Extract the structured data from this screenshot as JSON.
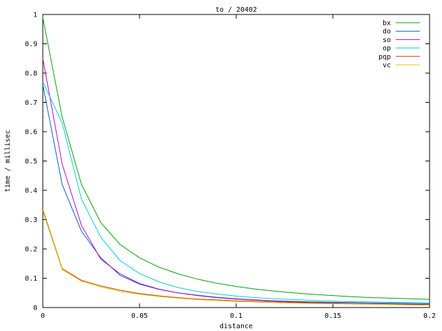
{
  "chart_data": {
    "type": "line",
    "title": "to / 20402",
    "xlabel": "distance",
    "ylabel": "time / millisec",
    "xlim": [
      0,
      0.2
    ],
    "ylim": [
      0,
      1
    ],
    "xticks": [
      "0",
      "0.05",
      "0.1",
      "0.15",
      "0.2"
    ],
    "yticks": [
      "0",
      "0.1",
      "0.2",
      "0.3",
      "0.4",
      "0.5",
      "0.6",
      "0.7",
      "0.8",
      "0.9",
      "1"
    ],
    "grid": false,
    "legend_position": "top-right",
    "x": [
      0,
      0.01,
      0.02,
      0.03,
      0.04,
      0.05,
      0.06,
      0.07,
      0.08,
      0.09,
      0.1,
      0.11,
      0.12,
      0.13,
      0.14,
      0.15,
      0.16,
      0.17,
      0.18,
      0.19,
      0.2
    ],
    "series": [
      {
        "name": "bx",
        "color": "#00a000",
        "values": [
          0.99,
          0.65,
          0.42,
          0.29,
          0.215,
          0.17,
          0.138,
          0.115,
          0.097,
          0.083,
          0.072,
          0.063,
          0.056,
          0.05,
          0.045,
          0.041,
          0.037,
          0.034,
          0.032,
          0.03,
          0.028
        ]
      },
      {
        "name": "do",
        "color": "#0060c0",
        "values": [
          0.76,
          0.42,
          0.26,
          0.17,
          0.11,
          0.08,
          0.062,
          0.05,
          0.042,
          0.035,
          0.03,
          0.026,
          0.023,
          0.021,
          0.019,
          0.018,
          0.017,
          0.016,
          0.015,
          0.014,
          0.013
        ]
      },
      {
        "name": "so",
        "color": "#c000c0",
        "values": [
          0.85,
          0.49,
          0.28,
          0.165,
          0.115,
          0.082,
          0.063,
          0.05,
          0.041,
          0.034,
          0.029,
          0.025,
          0.022,
          0.019,
          0.017,
          0.016,
          0.014,
          0.013,
          0.012,
          0.011,
          0.01
        ]
      },
      {
        "name": "op",
        "color": "#00d0d0",
        "values": [
          0.77,
          0.63,
          0.37,
          0.24,
          0.16,
          0.116,
          0.088,
          0.068,
          0.055,
          0.046,
          0.039,
          0.034,
          0.03,
          0.027,
          0.024,
          0.022,
          0.02,
          0.019,
          0.018,
          0.017,
          0.016
        ]
      },
      {
        "name": "pqp",
        "color": "#c04000",
        "values": [
          0.335,
          0.133,
          0.093,
          0.074,
          0.059,
          0.048,
          0.04,
          0.034,
          0.029,
          0.026,
          0.023,
          0.021,
          0.019,
          0.017,
          0.016,
          0.014,
          0.013,
          0.012,
          0.011,
          0.01,
          0.009
        ]
      },
      {
        "name": "vc",
        "color": "#e0c000",
        "values": [
          0.33,
          0.13,
          0.09,
          0.07,
          0.055,
          0.045,
          0.038,
          0.032,
          0.027,
          0.024,
          0.021,
          0.019,
          0.017,
          0.015,
          0.014,
          0.013,
          0.012,
          0.011,
          0.01,
          0.009,
          0.008
        ]
      }
    ]
  }
}
